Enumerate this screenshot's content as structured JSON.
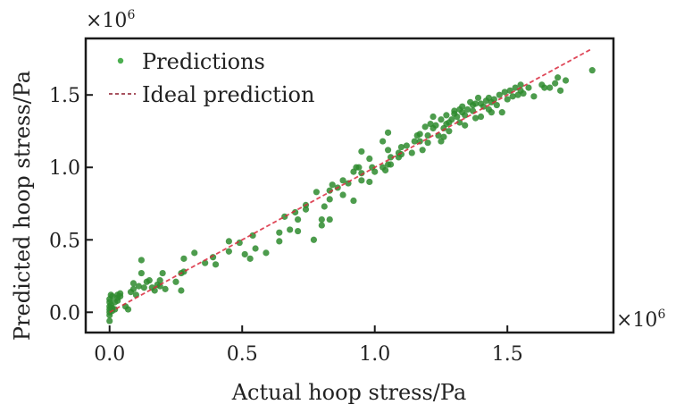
{
  "chart_data": {
    "type": "scatter",
    "title": "",
    "xlabel": "Actual hoop stress/Pa",
    "ylabel": "Predicted hoop stress/Pa",
    "x_multiplier": "×10",
    "x_multiplier_exp": "6",
    "y_multiplier": "×10",
    "y_multiplier_exp": "6",
    "xlim": [
      -0.09,
      1.9
    ],
    "ylim": [
      -0.14,
      1.89
    ],
    "xticks": [
      0.0,
      0.5,
      1.0,
      1.5
    ],
    "xtick_labels": [
      "0.0",
      "0.5",
      "1.0",
      "1.5"
    ],
    "yticks": [
      0.0,
      0.5,
      1.0,
      1.5
    ],
    "ytick_labels": [
      "0.0",
      "0.5",
      "1.0",
      "1.5"
    ],
    "grid": false,
    "legend": {
      "position": "top-left",
      "entries": [
        "Predictions",
        "Ideal prediction"
      ]
    },
    "colors": {
      "points": "#2e8b2e",
      "ideal_line": "#d9283c",
      "axis": "#1a1a1a"
    },
    "series": [
      {
        "name": "Ideal prediction",
        "kind": "line",
        "style": "dashed",
        "x": [
          0.0,
          1.82
        ],
        "y": [
          0.0,
          1.82
        ]
      },
      {
        "name": "Predictions",
        "kind": "scatter",
        "points": [
          [
            0.0,
            -0.06
          ],
          [
            0.0,
            0.04
          ],
          [
            0.0,
            0.0
          ],
          [
            0.0,
            0.02
          ],
          [
            0.0,
            -0.02
          ],
          [
            0.0,
            0.07
          ],
          [
            0.0,
            0.09
          ],
          [
            0.005,
            0.12
          ],
          [
            0.005,
            0.05
          ],
          [
            0.01,
            0.11
          ],
          [
            0.01,
            0.03
          ],
          [
            0.01,
            0.01
          ],
          [
            0.02,
            0.02
          ],
          [
            0.03,
            0.08
          ],
          [
            0.03,
            0.12
          ],
          [
            0.04,
            0.11
          ],
          [
            0.03,
            0.1
          ],
          [
            0.04,
            0.13
          ],
          [
            0.07,
            0.02
          ],
          [
            0.09,
            0.16
          ],
          [
            0.09,
            0.2
          ],
          [
            0.11,
            0.18
          ],
          [
            0.12,
            0.36
          ],
          [
            0.13,
            0.17
          ],
          [
            0.15,
            0.22
          ],
          [
            0.12,
            0.27
          ],
          [
            0.16,
            0.17
          ],
          [
            0.17,
            0.15
          ],
          [
            0.19,
            0.22
          ],
          [
            0.19,
            0.18
          ],
          [
            0.21,
            0.16
          ],
          [
            0.2,
            0.27
          ],
          [
            0.27,
            0.15
          ],
          [
            0.27,
            0.27
          ],
          [
            0.28,
            0.28
          ],
          [
            0.28,
            0.37
          ],
          [
            0.32,
            0.41
          ],
          [
            0.36,
            0.34
          ],
          [
            0.39,
            0.38
          ],
          [
            0.4,
            0.33
          ],
          [
            0.45,
            0.42
          ],
          [
            0.45,
            0.49
          ],
          [
            0.49,
            0.48
          ],
          [
            0.51,
            0.4
          ],
          [
            0.53,
            0.37
          ],
          [
            0.55,
            0.44
          ],
          [
            0.54,
            0.53
          ],
          [
            0.59,
            0.41
          ],
          [
            0.64,
            0.55
          ],
          [
            0.64,
            0.49
          ],
          [
            0.68,
            0.57
          ],
          [
            0.7,
            0.69
          ],
          [
            0.71,
            0.56
          ],
          [
            0.71,
            0.64
          ],
          [
            0.74,
            0.71
          ],
          [
            0.77,
            0.5
          ],
          [
            0.8,
            0.6
          ],
          [
            0.8,
            0.64
          ],
          [
            0.81,
            0.73
          ],
          [
            0.83,
            0.64
          ],
          [
            0.83,
            0.78
          ],
          [
            0.78,
            0.83
          ],
          [
            0.83,
            0.84
          ],
          [
            0.84,
            0.88
          ],
          [
            0.88,
            0.81
          ],
          [
            0.92,
            0.77
          ],
          [
            0.88,
            0.91
          ],
          [
            0.9,
            0.89
          ],
          [
            0.92,
            0.97
          ],
          [
            0.93,
            1.0
          ],
          [
            0.95,
            0.91
          ],
          [
            0.95,
            0.96
          ],
          [
            0.95,
            1.11
          ],
          [
            0.94,
            1.0
          ],
          [
            0.98,
            0.9
          ],
          [
            0.99,
            1.0
          ],
          [
            0.98,
            1.06
          ],
          [
            1.0,
            0.97
          ],
          [
            1.03,
            1.0
          ],
          [
            1.04,
            0.98
          ],
          [
            1.05,
            1.02
          ],
          [
            1.06,
            1.02
          ],
          [
            1.05,
            1.12
          ],
          [
            1.06,
            1.07
          ],
          [
            1.09,
            1.07
          ],
          [
            1.09,
            1.1
          ],
          [
            1.1,
            1.14
          ],
          [
            1.1,
            1.09
          ],
          [
            1.03,
            1.18
          ],
          [
            1.05,
            1.24
          ],
          [
            1.15,
            1.18
          ],
          [
            1.16,
            1.22
          ],
          [
            1.17,
            1.18
          ],
          [
            1.17,
            1.23
          ],
          [
            1.18,
            1.12
          ],
          [
            1.19,
            1.28
          ],
          [
            1.2,
            1.22
          ],
          [
            1.21,
            1.3
          ],
          [
            1.22,
            1.27
          ],
          [
            1.23,
            1.29
          ],
          [
            1.24,
            1.22
          ],
          [
            1.25,
            1.33
          ],
          [
            1.26,
            1.27
          ],
          [
            1.27,
            1.3
          ],
          [
            1.27,
            1.36
          ],
          [
            1.28,
            1.31
          ],
          [
            1.29,
            1.33
          ],
          [
            1.3,
            1.37
          ],
          [
            1.3,
            1.39
          ],
          [
            1.31,
            1.35
          ],
          [
            1.32,
            1.4
          ],
          [
            1.32,
            1.31
          ],
          [
            1.33,
            1.42
          ],
          [
            1.33,
            1.38
          ],
          [
            1.34,
            1.36
          ],
          [
            1.35,
            1.4
          ],
          [
            1.36,
            1.45
          ],
          [
            1.37,
            1.39
          ],
          [
            1.37,
            1.43
          ],
          [
            1.38,
            1.44
          ],
          [
            1.38,
            1.34
          ],
          [
            1.39,
            1.48
          ],
          [
            1.4,
            1.44
          ],
          [
            1.41,
            1.42
          ],
          [
            1.42,
            1.46
          ],
          [
            1.43,
            1.4
          ],
          [
            1.43,
            1.48
          ],
          [
            1.44,
            1.45
          ],
          [
            1.45,
            1.47
          ],
          [
            1.46,
            1.43
          ],
          [
            1.47,
            1.5
          ],
          [
            1.48,
            1.38
          ],
          [
            1.49,
            1.52
          ],
          [
            1.5,
            1.47
          ],
          [
            1.51,
            1.53
          ],
          [
            1.52,
            1.49
          ],
          [
            1.53,
            1.55
          ],
          [
            1.54,
            1.5
          ],
          [
            1.55,
            1.53
          ],
          [
            1.55,
            1.57
          ],
          [
            1.56,
            1.51
          ],
          [
            1.58,
            1.55
          ],
          [
            1.6,
            1.49
          ],
          [
            1.63,
            1.57
          ],
          [
            1.64,
            1.55
          ],
          [
            1.66,
            1.55
          ],
          [
            1.68,
            1.58
          ],
          [
            1.69,
            1.62
          ],
          [
            1.7,
            1.53
          ],
          [
            1.72,
            1.6
          ],
          [
            1.82,
            1.67
          ],
          [
            1.25,
            1.18
          ],
          [
            1.28,
            1.25
          ],
          [
            1.34,
            1.29
          ],
          [
            1.4,
            1.35
          ],
          [
            1.44,
            1.38
          ],
          [
            1.22,
            1.35
          ],
          [
            0.14,
            0.21
          ],
          [
            0.18,
            0.19
          ],
          [
            0.25,
            0.21
          ],
          [
            0.06,
            0.04
          ],
          [
            0.02,
            0.07
          ],
          [
            0.08,
            0.14
          ],
          [
            0.1,
            0.12
          ],
          [
            0.66,
            0.66
          ],
          [
            0.74,
            0.74
          ],
          [
            0.86,
            0.86
          ],
          [
            1.12,
            1.15
          ],
          [
            1.14,
            1.1
          ],
          [
            1.2,
            1.17
          ],
          [
            1.26,
            1.21
          ]
        ]
      }
    ]
  }
}
